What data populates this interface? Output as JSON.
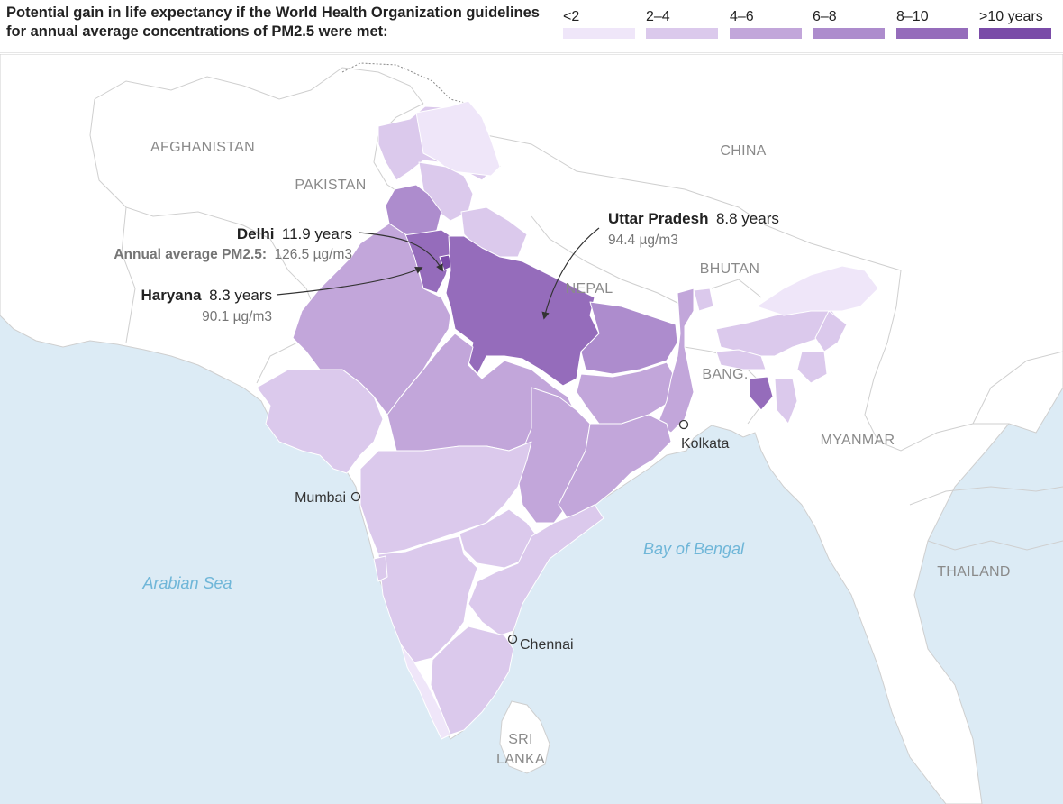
{
  "legend": {
    "title": "Potential gain in life expectancy if the World Health Organization guidelines for annual average concentrations of PM2.5 were met:",
    "items": [
      {
        "label": "<2",
        "color": "#efe6f9"
      },
      {
        "label": "2–4",
        "color": "#dbc9ec"
      },
      {
        "label": "4–6",
        "color": "#c2a6da"
      },
      {
        "label": "6–8",
        "color": "#ad8ccd"
      },
      {
        "label": "8–10",
        "color": "#956cbb"
      },
      {
        "label": ">10 years",
        "color": "#7a4ba8"
      }
    ]
  },
  "countries": [
    "AFGHANISTAN",
    "PAKISTAN",
    "CHINA",
    "NEPAL",
    "BHUTAN",
    "BANG.",
    "MYANMAR",
    "THAILAND",
    "SRI",
    "LANKA"
  ],
  "seas": [
    "Arabian Sea",
    "Bay of Bengal"
  ],
  "cities": [
    "Mumbai",
    "Kolkata",
    "Chennai"
  ],
  "callouts": {
    "delhi": {
      "name": "Delhi",
      "value": "11.9 years",
      "pm_label": "Annual average PM2.5:",
      "pm_value": "126.5 µg/m3"
    },
    "haryana": {
      "name": "Haryana",
      "value": "8.3 years",
      "pm_value": "90.1 µg/m3"
    },
    "uttar_pradesh": {
      "name": "Uttar Pradesh",
      "value": "8.8 years",
      "pm_value": "94.4 µg/m3"
    }
  },
  "colors": {
    "sea": "#dcebf5",
    "land": "#ffffff",
    "border": "#cfcfcf",
    "state_border": "#ffffff"
  }
}
